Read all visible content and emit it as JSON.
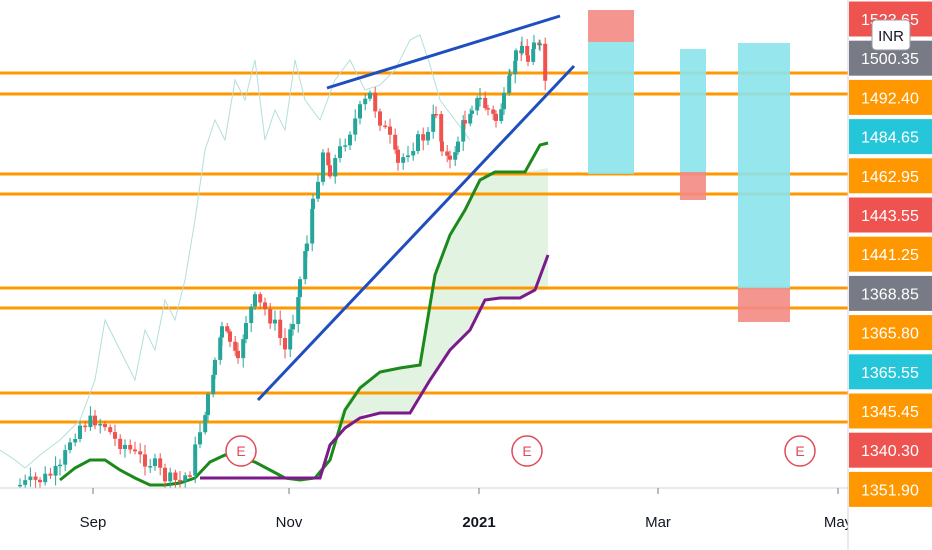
{
  "chart_data": {
    "type": "candlestick",
    "currency": "INR",
    "x_axis": {
      "labels": [
        "Sep",
        "Nov",
        "2021",
        "Mar",
        "May"
      ],
      "bold_label": "2021"
    },
    "price_scale": {
      "badges": [
        {
          "price": "1523.65",
          "color": "#ef5350"
        },
        {
          "price": "1500.35",
          "color": "#787b86"
        },
        {
          "price": "1492.40",
          "color": "#ff9800"
        },
        {
          "price": "1484.65",
          "color": "#26c6da"
        },
        {
          "price": "1462.95",
          "color": "#ff9800"
        },
        {
          "price": "1443.55",
          "color": "#ef5350"
        },
        {
          "price": "1441.25",
          "color": "#ff9800"
        },
        {
          "price": "1368.85",
          "color": "#787b86"
        },
        {
          "price": "1365.80",
          "color": "#ff9800"
        },
        {
          "price": "1365.55",
          "color": "#26c6da"
        },
        {
          "price": "1345.45",
          "color": "#ff9800"
        },
        {
          "price": "1340.30",
          "color": "#ef5350"
        },
        {
          "price": "1351.90",
          "color": "#ff9800"
        }
      ]
    },
    "horizontal_levels": [
      1492.4,
      1484.65,
      1462.95,
      1443.55,
      1441.25,
      1368.85,
      1365.8,
      1345.45,
      1340.3
    ],
    "earnings_marker_label": "E",
    "colors": {
      "up_candle": "#26a69a",
      "down_candle": "#ef5350",
      "level_line": "#ff9800",
      "trend_line": "#1f4fbf",
      "span_a": "#1b8a1b",
      "span_b": "#7b1a8a",
      "cloud_fill": "#e2f3e2",
      "lagging": "#b2dfdb",
      "target_box": "#8be3ec",
      "stop_box": "#f48a84"
    }
  }
}
